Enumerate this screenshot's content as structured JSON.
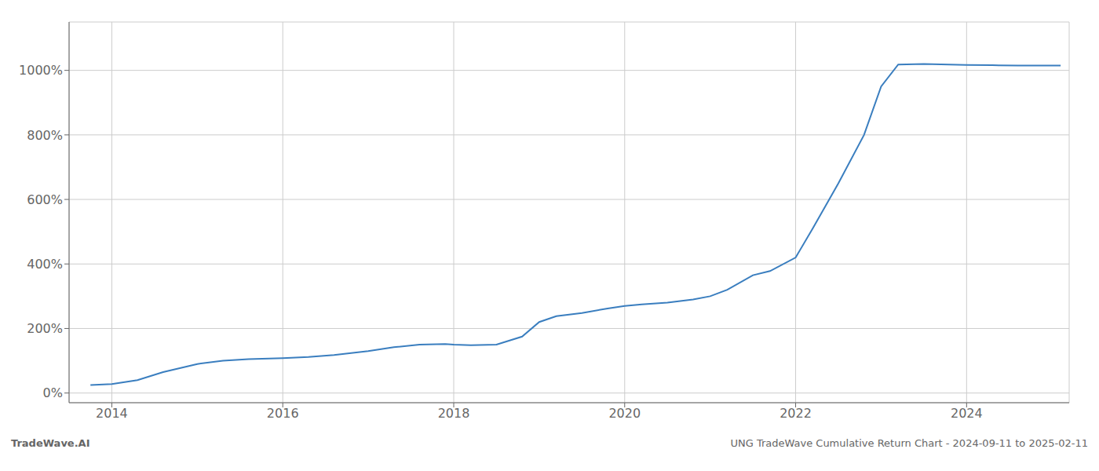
{
  "chart_data": {
    "type": "line",
    "title": "",
    "annotations": [
      "TradeWave.AI",
      "UNG TradeWave Cumulative Return Chart - 2024-09-11 to 2025-02-11"
    ],
    "x": [
      2013.75,
      2014.0,
      2014.3,
      2014.6,
      2015.0,
      2015.3,
      2015.6,
      2016.0,
      2016.3,
      2016.6,
      2017.0,
      2017.3,
      2017.6,
      2017.9,
      2018.0,
      2018.2,
      2018.5,
      2018.8,
      2019.0,
      2019.2,
      2019.5,
      2019.8,
      2020.0,
      2020.2,
      2020.5,
      2020.8,
      2021.0,
      2021.2,
      2021.5,
      2021.7,
      2022.0,
      2022.2,
      2022.5,
      2022.8,
      2023.0,
      2023.2,
      2023.5,
      2023.8,
      2024.0,
      2024.3,
      2024.6,
      2024.9,
      2025.1
    ],
    "values": [
      25,
      28,
      40,
      65,
      90,
      100,
      105,
      108,
      112,
      118,
      130,
      142,
      150,
      152,
      150,
      148,
      150,
      175,
      220,
      238,
      248,
      262,
      270,
      275,
      280,
      290,
      300,
      320,
      365,
      378,
      420,
      510,
      650,
      800,
      950,
      1018,
      1020,
      1018,
      1017,
      1016,
      1015,
      1015,
      1015
    ],
    "color": "#3a7ebf",
    "xlim": [
      2013.5,
      2025.2
    ],
    "ylim": [
      -30,
      1150
    ],
    "xticks": [
      2014,
      2016,
      2018,
      2020,
      2022,
      2024
    ],
    "yticks": [
      {
        "value": 0,
        "label": "0%"
      },
      {
        "value": 200,
        "label": "200%"
      },
      {
        "value": 400,
        "label": "400%"
      },
      {
        "value": 600,
        "label": "600%"
      },
      {
        "value": 800,
        "label": "800%"
      },
      {
        "value": 1000,
        "label": "1000%"
      }
    ],
    "grid": true
  }
}
